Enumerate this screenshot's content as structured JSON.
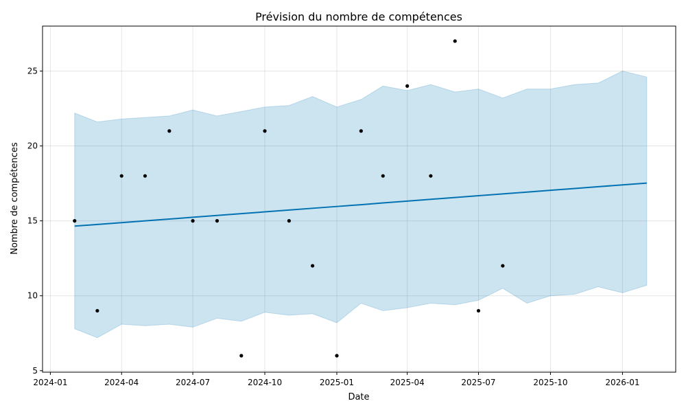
{
  "chart_data": {
    "type": "line",
    "title": "Prévision du nombre de compétences",
    "xlabel": "Date",
    "ylabel": "Nombre de compétences",
    "xlim": [
      "2023-12-22",
      "2026-03-10"
    ],
    "ylim": [
      4.9,
      28
    ],
    "grid": true,
    "x_ticks": [
      "2024-01-01",
      "2024-04-01",
      "2024-07-01",
      "2024-10-01",
      "2025-01-01",
      "2025-04-01",
      "2025-07-01",
      "2025-10-01",
      "2026-01-01"
    ],
    "x_tick_labels": [
      "2024-01",
      "2024-04",
      "2024-07",
      "2024-10",
      "2025-01",
      "2025-04",
      "2025-07",
      "2025-10",
      "2026-01"
    ],
    "y_ticks": [
      5,
      10,
      15,
      20,
      25
    ],
    "y_tick_labels": [
      "5",
      "10",
      "15",
      "20",
      "25"
    ],
    "observed": {
      "dates": [
        "2024-02-01",
        "2024-03-01",
        "2024-04-01",
        "2024-05-01",
        "2024-06-01",
        "2024-07-01",
        "2024-08-01",
        "2024-09-01",
        "2024-10-01",
        "2024-11-01",
        "2024-12-01",
        "2025-01-01",
        "2025-02-01",
        "2025-03-01",
        "2025-04-01",
        "2025-05-01",
        "2025-06-01",
        "2025-07-01",
        "2025-08-01"
      ],
      "values": [
        15,
        9,
        18,
        18,
        21,
        15,
        15,
        6,
        21,
        15,
        12,
        6,
        21,
        18,
        24,
        18,
        27,
        9,
        12
      ],
      "color": "#000000"
    },
    "forecast": {
      "dates": [
        "2024-02-01",
        "2024-03-01",
        "2024-04-01",
        "2024-05-01",
        "2024-06-01",
        "2024-07-01",
        "2024-08-01",
        "2024-09-01",
        "2024-10-01",
        "2024-11-01",
        "2024-12-01",
        "2025-01-01",
        "2025-02-01",
        "2025-03-01",
        "2025-04-01",
        "2025-05-01",
        "2025-06-01",
        "2025-07-01",
        "2025-08-01",
        "2025-09-01",
        "2025-10-01",
        "2025-11-01",
        "2025-12-01",
        "2026-01-01",
        "2026-02-01"
      ],
      "yhat": [
        14.65,
        14.76,
        14.88,
        15.0,
        15.12,
        15.24,
        15.36,
        15.48,
        15.6,
        15.72,
        15.84,
        15.96,
        16.08,
        16.2,
        16.32,
        16.44,
        16.56,
        16.68,
        16.8,
        16.92,
        17.04,
        17.16,
        17.28,
        17.4,
        17.52
      ],
      "yhat_lower": [
        7.8,
        7.2,
        8.1,
        8.0,
        8.1,
        7.9,
        8.5,
        8.3,
        8.9,
        8.7,
        8.8,
        8.2,
        9.5,
        9.0,
        9.2,
        9.5,
        9.4,
        9.7,
        10.5,
        9.5,
        10.0,
        10.1,
        10.6,
        10.2,
        10.7
      ],
      "yhat_upper": [
        22.2,
        21.6,
        21.8,
        21.9,
        22.0,
        22.4,
        22.0,
        22.3,
        22.6,
        22.7,
        23.3,
        22.6,
        23.1,
        24.0,
        23.7,
        24.1,
        23.6,
        23.8,
        23.2,
        23.8,
        23.8,
        24.1,
        24.2,
        25.0,
        24.6
      ],
      "line_color": "#0072b2",
      "band_color": "#0072b2"
    }
  }
}
